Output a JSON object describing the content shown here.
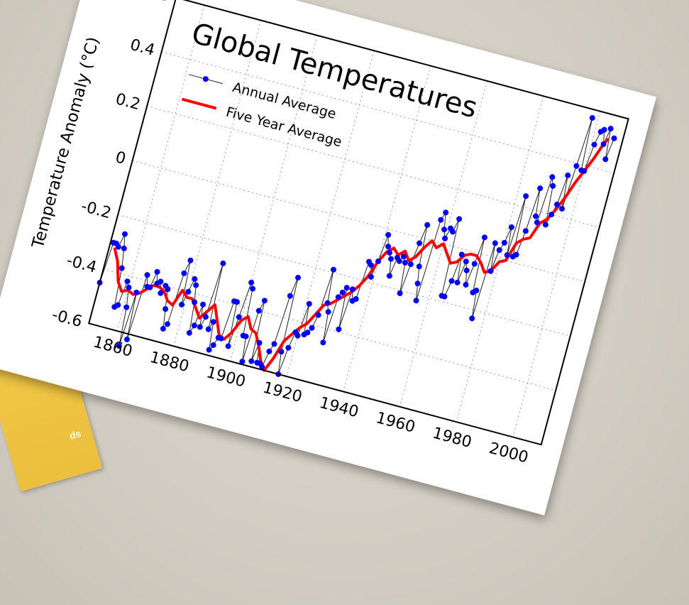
{
  "background_card": {
    "text": "ds"
  },
  "chart_data": {
    "type": "line",
    "title": "Global Temperatures",
    "ylabel": "Temperature Anomaly (°C)",
    "xlabel": "",
    "xlim": [
      1850,
      2010
    ],
    "ylim": [
      -0.6,
      0.6
    ],
    "grid": true,
    "legend_position": "top-left",
    "x_ticks": [
      "1860",
      "1880",
      "1900",
      "1920",
      "1940",
      "1960",
      "1980",
      "2000"
    ],
    "y_ticks": [
      "-0.6",
      "-0.4",
      "-0.2",
      "0",
      "0.2",
      "0.4",
      "0.6"
    ],
    "series": [
      {
        "name": "Annual Average",
        "color": "#0000ff",
        "marker": "circle",
        "x": [
          1850,
          1851,
          1852,
          1853,
          1854,
          1855,
          1856,
          1857,
          1858,
          1859,
          1860,
          1861,
          1862,
          1863,
          1864,
          1865,
          1866,
          1867,
          1868,
          1869,
          1870,
          1871,
          1872,
          1873,
          1874,
          1875,
          1876,
          1877,
          1878,
          1879,
          1880,
          1881,
          1882,
          1883,
          1884,
          1885,
          1886,
          1887,
          1888,
          1889,
          1890,
          1891,
          1892,
          1893,
          1894,
          1895,
          1896,
          1897,
          1898,
          1899,
          1900,
          1901,
          1902,
          1903,
          1904,
          1905,
          1906,
          1907,
          1908,
          1909,
          1910,
          1911,
          1912,
          1913,
          1914,
          1915,
          1916,
          1917,
          1918,
          1919,
          1920,
          1921,
          1922,
          1923,
          1924,
          1925,
          1926,
          1927,
          1928,
          1929,
          1930,
          1931,
          1932,
          1933,
          1934,
          1935,
          1936,
          1937,
          1938,
          1939,
          1940,
          1941,
          1942,
          1943,
          1944,
          1945,
          1946,
          1947,
          1948,
          1949,
          1950,
          1951,
          1952,
          1953,
          1954,
          1955,
          1956,
          1957,
          1958,
          1959,
          1960,
          1961,
          1962,
          1963,
          1964,
          1965,
          1966,
          1967,
          1968,
          1969,
          1970,
          1971,
          1972,
          1973,
          1974,
          1975,
          1976,
          1977,
          1978,
          1979,
          1980,
          1981,
          1982,
          1983,
          1984,
          1985,
          1986,
          1987,
          1988,
          1989,
          1990,
          1991,
          1992,
          1993,
          1994,
          1995,
          1996,
          1997,
          1998,
          1999,
          2000,
          2001,
          2002,
          2003,
          2004,
          2005,
          2006,
          2007
        ],
        "y": [
          -0.45,
          -0.3,
          -0.3,
          -0.31,
          -0.26,
          -0.31,
          -0.38,
          -0.52,
          -0.51,
          -0.42,
          -0.44,
          -0.51,
          -0.65,
          -0.45,
          -0.62,
          -0.38,
          -0.42,
          -0.42,
          -0.36,
          -0.4,
          -0.39,
          -0.43,
          -0.4,
          -0.41,
          -0.48,
          -0.55,
          -0.53,
          -0.34,
          -0.29,
          -0.45,
          -0.4,
          -0.35,
          -0.37,
          -0.43,
          -0.54,
          -0.51,
          -0.43,
          -0.51,
          -0.47,
          -0.27,
          -0.51,
          -0.48,
          -0.58,
          -0.56,
          -0.53,
          -0.53,
          -0.39,
          -0.39,
          -0.55,
          -0.44,
          -0.31,
          -0.33,
          -0.5,
          -0.5,
          -0.59,
          -0.4,
          -0.36,
          -0.58,
          -0.51,
          -0.58,
          -0.58,
          -0.59,
          -0.53,
          -0.5,
          -0.32,
          -0.25,
          -0.52,
          -0.6,
          -0.5,
          -0.44,
          -0.45,
          -0.33,
          -0.44,
          -0.43,
          -0.41,
          -0.36,
          -0.19,
          -0.31,
          -0.34,
          -0.45,
          -0.28,
          -0.26,
          -0.24,
          -0.39,
          -0.24,
          -0.28,
          -0.27,
          -0.13,
          -0.14,
          -0.18,
          -0.12,
          -0.02,
          -0.06,
          -0.08,
          -0.1,
          -0.16,
          -0.09,
          -0.1,
          -0.08,
          -0.1,
          -0.21,
          -0.1,
          -0.02,
          0.05,
          -0.1,
          -0.16,
          -0.22,
          0.08,
          0.11,
          0.05,
          0.02,
          0.06,
          0.05,
          0.1,
          -0.18,
          -0.18,
          -0.12,
          -0.02,
          -0.12,
          -0.04,
          -0.07,
          -0.12,
          -0.04,
          0.06,
          -0.14,
          -0.13,
          -0.23,
          0.05,
          -0.05,
          0.03,
          0.06,
          0.12,
          0.02,
          0.24,
          0.02,
          0.03,
          0.12,
          0.28,
          0.18,
          0.16,
          0.33,
          0.3,
          0.16,
          0.2,
          0.24,
          0.35,
          0.23,
          0.39,
          0.57,
          0.38,
          0.38,
          0.48,
          0.53,
          0.54,
          0.49,
          0.55,
          0.44,
          0.52
        ]
      },
      {
        "name": "Five Year Average",
        "color": "#ff0000",
        "x": [
          1852,
          1854,
          1856,
          1858,
          1860,
          1862,
          1864,
          1866,
          1868,
          1870,
          1872,
          1874,
          1876,
          1878,
          1880,
          1882,
          1884,
          1886,
          1888,
          1890,
          1892,
          1894,
          1896,
          1898,
          1900,
          1902,
          1904,
          1906,
          1908,
          1910,
          1912,
          1914,
          1916,
          1918,
          1920,
          1922,
          1924,
          1926,
          1928,
          1930,
          1932,
          1934,
          1936,
          1938,
          1940,
          1942,
          1944,
          1946,
          1948,
          1950,
          1952,
          1954,
          1956,
          1958,
          1960,
          1962,
          1964,
          1966,
          1968,
          1970,
          1972,
          1974,
          1976,
          1978,
          1980,
          1982,
          1984,
          1986,
          1988,
          1990,
          1992,
          1994,
          1996,
          1998,
          2000,
          2002,
          2004,
          2005
        ],
        "y": [
          -0.32,
          -0.36,
          -0.43,
          -0.46,
          -0.45,
          -0.46,
          -0.45,
          -0.43,
          -0.41,
          -0.41,
          -0.42,
          -0.45,
          -0.46,
          -0.4,
          -0.42,
          -0.42,
          -0.45,
          -0.48,
          -0.45,
          -0.42,
          -0.47,
          -0.52,
          -0.53,
          -0.5,
          -0.45,
          -0.43,
          -0.47,
          -0.48,
          -0.52,
          -0.57,
          -0.6,
          -0.55,
          -0.48,
          -0.45,
          -0.42,
          -0.4,
          -0.36,
          -0.32,
          -0.31,
          -0.29,
          -0.27,
          -0.25,
          -0.22,
          -0.18,
          -0.12,
          -0.08,
          -0.06,
          -0.08,
          -0.06,
          -0.09,
          -0.07,
          -0.03,
          0.0,
          -0.02,
          0.0,
          -0.03,
          -0.06,
          -0.05,
          -0.02,
          -0.01,
          -0.01,
          -0.03,
          -0.06,
          -0.05,
          -0.01,
          0.0,
          0.07,
          0.09,
          0.1,
          0.16,
          0.18,
          0.22,
          0.27,
          0.33,
          0.38,
          0.43,
          0.49,
          0.51
        ]
      }
    ]
  }
}
